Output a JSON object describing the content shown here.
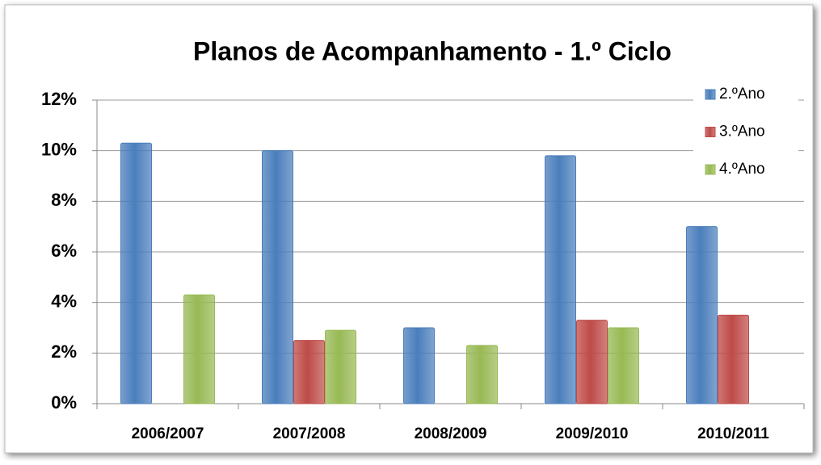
{
  "chart_data": {
    "type": "bar",
    "title": "Planos de Acompanhamento - 1.º Ciclo",
    "categories": [
      "2006/2007",
      "2007/2008",
      "2008/2009",
      "2009/2010",
      "2010/2011"
    ],
    "series": [
      {
        "name": "2.ºAno",
        "color": "#4a7ebb",
        "values": [
          10.3,
          10.0,
          3.0,
          9.8,
          7.0
        ]
      },
      {
        "name": "3.ºAno",
        "color": "#be4b48",
        "values": [
          null,
          2.5,
          null,
          3.3,
          3.5
        ]
      },
      {
        "name": "4.ºAno",
        "color": "#98b954",
        "values": [
          4.3,
          2.9,
          2.3,
          3.0,
          null
        ]
      }
    ],
    "ylim": [
      0,
      12
    ],
    "yticks": [
      {
        "value": 0,
        "label": "0%"
      },
      {
        "value": 2,
        "label": "2%"
      },
      {
        "value": 4,
        "label": "4%"
      },
      {
        "value": 6,
        "label": "6%"
      },
      {
        "value": 8,
        "label": "8%"
      },
      {
        "value": 10,
        "label": "10%"
      },
      {
        "value": 12,
        "label": "12%"
      }
    ],
    "grid": true,
    "legend": "top-right"
  }
}
